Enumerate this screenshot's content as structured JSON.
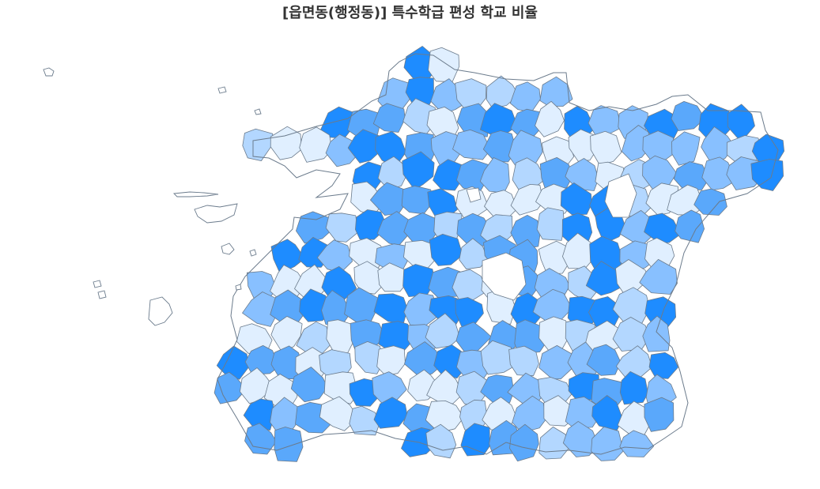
{
  "title": "[읍면동(행정동)] 특수학급 편성 학교 비율",
  "palette": [
    "#e0efff",
    "#b3d7ff",
    "#88c0ff",
    "#5aa8fb",
    "#1e8cff"
  ]
}
